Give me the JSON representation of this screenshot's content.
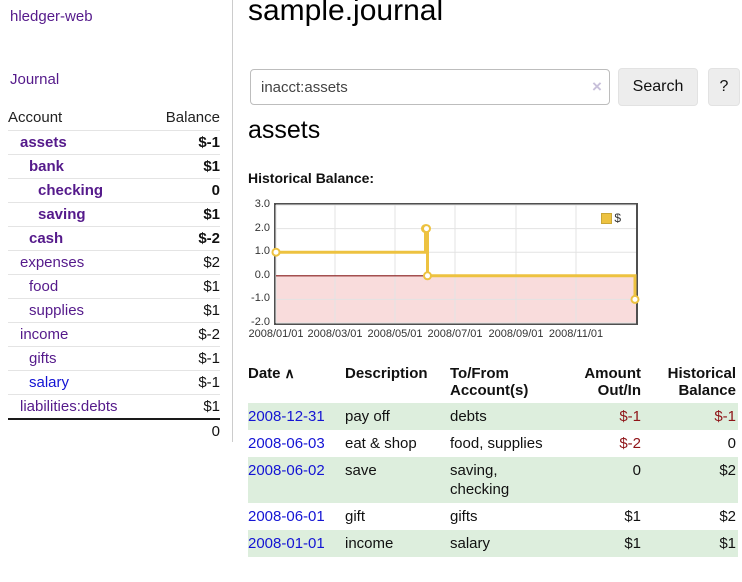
{
  "app": {
    "title": "hledger-web"
  },
  "sidebar": {
    "journal_link": "Journal",
    "accounts": {
      "header": {
        "account": "Account",
        "balance": "Balance"
      },
      "rows": [
        {
          "name": "assets",
          "balance": "$-1"
        },
        {
          "name": "bank",
          "balance": "$1"
        },
        {
          "name": "checking",
          "balance": "0"
        },
        {
          "name": "saving",
          "balance": "$1"
        },
        {
          "name": "cash",
          "balance": "$-2"
        },
        {
          "name": "expenses",
          "balance": "$2"
        },
        {
          "name": "food",
          "balance": "$1"
        },
        {
          "name": "supplies",
          "balance": "$1"
        },
        {
          "name": "income",
          "balance": "$-2"
        },
        {
          "name": "gifts",
          "balance": "$-1"
        },
        {
          "name": "salary",
          "balance": "$-1"
        },
        {
          "name": "liabilities:debts",
          "balance": "$1"
        }
      ],
      "total": "0"
    }
  },
  "header": {
    "title": "sample.journal"
  },
  "search": {
    "query": "inacct:assets",
    "clear_icon": "×",
    "search_button": "Search",
    "help_button": "?"
  },
  "account_page": {
    "title": "assets",
    "chart_heading": "Historical Balance:"
  },
  "chart_data": {
    "type": "line",
    "step": true,
    "series": [
      {
        "name": "$",
        "color": "#edc240",
        "points": [
          [
            "2008-01-01",
            1
          ],
          [
            "2008-06-01",
            2
          ],
          [
            "2008-06-02",
            2
          ],
          [
            "2008-06-03",
            0
          ],
          [
            "2008-12-31",
            -1
          ]
        ]
      }
    ],
    "xlim": [
      "2008-01-01",
      "2009-01-01"
    ],
    "ylim": [
      -2,
      3
    ],
    "y_ticks": [
      {
        "label": "3.0",
        "value": 3
      },
      {
        "label": "2.0",
        "value": 2
      },
      {
        "label": "1.0",
        "value": 1
      },
      {
        "label": "0.0",
        "value": 0
      },
      {
        "label": "-1.0",
        "value": -1
      },
      {
        "label": "-2.0",
        "value": -2
      }
    ],
    "x_ticks": [
      {
        "label": "2008/01/01",
        "date": "2008-01-01"
      },
      {
        "label": "2008/03/01",
        "date": "2008-03-01"
      },
      {
        "label": "2008/05/01",
        "date": "2008-05-01"
      },
      {
        "label": "2008/07/01",
        "date": "2008-07-01"
      },
      {
        "label": "2008/09/01",
        "date": "2008-09-01"
      },
      {
        "label": "2008/11/01",
        "date": "2008-11-01"
      }
    ],
    "grid": true,
    "legend_position": "top-right",
    "negative_region_fill": "#f9dcdc",
    "zero_line_color": "#8b1a1a",
    "gridline_color": "#e3e3e3"
  },
  "register": {
    "headers": {
      "date": "Date",
      "sort_icon": "∧",
      "description": "Description",
      "accounts": "To/From Account(s)",
      "amount": "Amount Out/In",
      "balance": "Historical Balance"
    },
    "rows": [
      {
        "date": "2008-12-31",
        "description": "pay off",
        "accounts": "debts",
        "amount": "$-1",
        "balance": "$-1"
      },
      {
        "date": "2008-06-03",
        "description": "eat & shop",
        "accounts": "food, supplies",
        "amount": "$-2",
        "balance": "0"
      },
      {
        "date": "2008-06-02",
        "description": "save",
        "accounts": "saving, checking",
        "amount": "0",
        "balance": "$2"
      },
      {
        "date": "2008-06-01",
        "description": "gift",
        "accounts": "gifts",
        "amount": "$1",
        "balance": "$2"
      },
      {
        "date": "2008-01-01",
        "description": "income",
        "accounts": "salary",
        "amount": "$1",
        "balance": "$1"
      }
    ]
  },
  "colors": {
    "link_purple": "#551a8b",
    "link_blue": "#1414d4",
    "negative_strong": "#8f1418",
    "negative_soft": "#c4757d",
    "row_stripe_green": "#ddeedd",
    "series_yellow": "#edc240",
    "negative_region_pink": "#f9dcdc",
    "zero_line_red": "#8b1a1a"
  }
}
